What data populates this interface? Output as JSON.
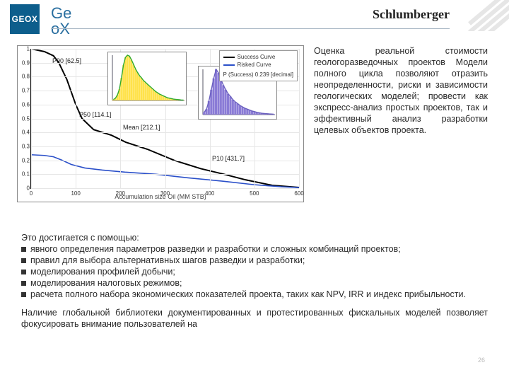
{
  "header": {
    "logo_text": "GEOX",
    "title": "GeoX",
    "brand": "Schlumberger"
  },
  "chart": {
    "type": "line",
    "xlabel": "Accumulation size Oil (MM STB)",
    "xlim": [
      0,
      600
    ],
    "xticks": [
      0,
      100,
      200,
      300,
      400,
      500,
      600
    ],
    "ylim": [
      0,
      1
    ],
    "yticks": [
      0,
      0.1,
      0.2,
      0.3,
      0.4,
      0.5,
      0.6,
      0.7,
      0.8,
      0.9,
      1
    ],
    "legend": {
      "items": [
        {
          "label": "Success Curve",
          "color": "#000000"
        },
        {
          "label": "Risked Curve",
          "color": "#2a4fc9"
        }
      ],
      "p_success_label": "P (Success) 0.239 [decimal]"
    },
    "callouts": {
      "p90": "P90 [62.5]",
      "p50": "P50 [114.1]",
      "mean": "Mean [212.1]",
      "p10": "P10 [431.7]"
    },
    "success_curve": {
      "color": "#000000",
      "width": 2,
      "points": [
        [
          0,
          1.0
        ],
        [
          30,
          0.98
        ],
        [
          50,
          0.95
        ],
        [
          62,
          0.9
        ],
        [
          80,
          0.78
        ],
        [
          100,
          0.6
        ],
        [
          114,
          0.5
        ],
        [
          140,
          0.42
        ],
        [
          180,
          0.38
        ],
        [
          212,
          0.33
        ],
        [
          260,
          0.28
        ],
        [
          320,
          0.2
        ],
        [
          380,
          0.14
        ],
        [
          432,
          0.1
        ],
        [
          480,
          0.06
        ],
        [
          540,
          0.02
        ],
        [
          600,
          0.005
        ]
      ]
    },
    "risked_curve": {
      "color": "#2a4fc9",
      "width": 1.6,
      "points": [
        [
          0,
          0.24
        ],
        [
          30,
          0.235
        ],
        [
          50,
          0.225
        ],
        [
          70,
          0.2
        ],
        [
          90,
          0.17
        ],
        [
          120,
          0.145
        ],
        [
          160,
          0.13
        ],
        [
          210,
          0.115
        ],
        [
          280,
          0.1
        ],
        [
          350,
          0.075
        ],
        [
          430,
          0.05
        ],
        [
          500,
          0.025
        ],
        [
          560,
          0.01
        ],
        [
          600,
          0.004
        ]
      ]
    },
    "inset_left": {
      "type": "histogram",
      "bar_fill": "#ffe24a",
      "line_color": "#2faa2f",
      "axis_color": "#556",
      "bins": [
        0.02,
        0.05,
        0.12,
        0.25,
        0.5,
        0.78,
        0.95,
        1.0,
        0.98,
        0.9,
        0.8,
        0.7,
        0.62,
        0.55,
        0.5,
        0.44,
        0.4,
        0.36,
        0.32,
        0.28,
        0.24,
        0.2,
        0.17,
        0.14,
        0.12,
        0.1,
        0.08,
        0.06,
        0.05,
        0.04,
        0.03,
        0.025,
        0.02,
        0.015,
        0.01,
        0.01
      ]
    },
    "inset_right": {
      "type": "histogram",
      "bar_fill": "#8a7bd6",
      "line_color": "#6a5fbf",
      "axis_color": "#556",
      "bins": [
        0.05,
        0.12,
        0.3,
        0.55,
        0.8,
        1.0,
        0.92,
        0.78,
        0.65,
        0.55,
        0.46,
        0.4,
        0.33,
        0.28,
        0.24,
        0.2,
        0.17,
        0.14,
        0.12,
        0.1,
        0.08,
        0.065,
        0.05,
        0.04,
        0.03,
        0.025,
        0.02,
        0.015,
        0.012,
        0.01
      ]
    }
  },
  "right_text": "Оценка реальной стоимости геологоразведочных проектов Модели полного цикла позволяют отразить неопределенности, риски и зависимости геологических моделей; провести как экспресс-анализ простых проектов, так и эффективный анализ разработки целевых объектов проекта.",
  "below": {
    "intro": "Это достигается с помощью:",
    "bullets": [
      "явного определения параметров разведки и разработки и сложных комбинаций проектов;",
      "правил для выбора альтернативных шагов разведки и разработки;",
      "моделирования профилей добычи;",
      "моделирования налоговых режимов;",
      "расчета полного набора экономических показателей проекта, таких как NPV, IRR и индекс прибыльности."
    ],
    "outro": "Наличие глобальной библиотеки документированных и протестированных фискальных моделей позволяет фокусировать внимание пользователей на"
  },
  "page_number": "26"
}
